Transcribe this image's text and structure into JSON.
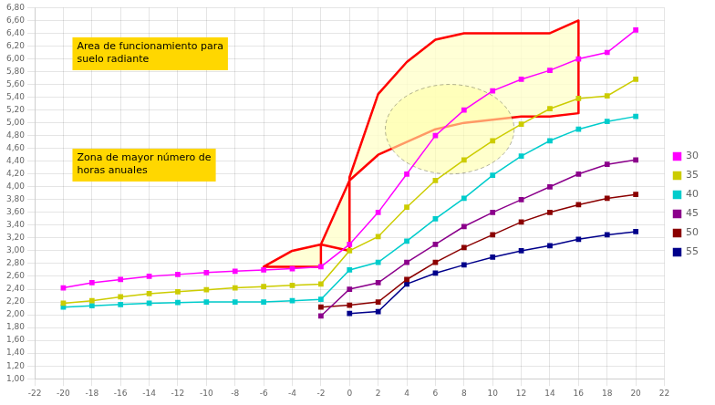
{
  "chart_data": {
    "type": "line",
    "x": [
      -20,
      -18,
      -16,
      -14,
      -12,
      -10,
      -8,
      -6,
      -4,
      -2,
      0,
      2,
      4,
      6,
      8,
      10,
      12,
      14,
      16,
      18,
      20
    ],
    "series": [
      {
        "name": "30",
        "color": "#FF00FF",
        "marker": "square",
        "values": [
          2.42,
          2.5,
          2.55,
          2.6,
          2.63,
          2.66,
          2.68,
          2.7,
          2.72,
          2.75,
          3.1,
          3.6,
          4.2,
          4.8,
          5.2,
          5.5,
          5.68,
          5.82,
          6.0,
          6.1,
          6.45
        ]
      },
      {
        "name": "35",
        "color": "#CCCC00",
        "marker": "square",
        "values": [
          2.18,
          2.22,
          2.28,
          2.33,
          2.36,
          2.39,
          2.42,
          2.44,
          2.46,
          2.48,
          3.0,
          3.22,
          3.68,
          4.1,
          4.42,
          4.72,
          4.98,
          5.22,
          5.38,
          5.42,
          5.68
        ]
      },
      {
        "name": "40",
        "color": "#00CCCC",
        "marker": "square",
        "values": [
          2.12,
          2.14,
          2.16,
          2.18,
          2.19,
          2.2,
          2.2,
          2.2,
          2.22,
          2.24,
          2.7,
          2.82,
          3.15,
          3.5,
          3.82,
          4.18,
          4.48,
          4.72,
          4.9,
          5.02,
          5.1
        ]
      },
      {
        "name": "45",
        "color": "#8B008B",
        "marker": "square",
        "values": [
          null,
          null,
          null,
          null,
          null,
          null,
          null,
          null,
          null,
          1.98,
          2.4,
          2.5,
          2.82,
          3.1,
          3.38,
          3.6,
          3.8,
          4.0,
          4.2,
          4.35,
          4.42
        ]
      },
      {
        "name": "50",
        "color": "#8B0000",
        "marker": "square",
        "values": [
          null,
          null,
          null,
          null,
          null,
          null,
          null,
          null,
          null,
          2.12,
          2.15,
          2.2,
          2.55,
          2.82,
          3.05,
          3.25,
          3.45,
          3.6,
          3.72,
          3.82,
          3.88
        ]
      },
      {
        "name": "55",
        "color": "#00008B",
        "marker": "square",
        "values": [
          null,
          null,
          null,
          null,
          null,
          null,
          null,
          null,
          null,
          null,
          2.02,
          2.05,
          2.48,
          2.65,
          2.78,
          2.9,
          3.0,
          3.08,
          3.18,
          3.25,
          3.3
        ]
      }
    ],
    "region": {
      "x": [
        -2,
        -2,
        0,
        0,
        2,
        4,
        6,
        8,
        10,
        12,
        14,
        16,
        16,
        14,
        12,
        10,
        8,
        6,
        4,
        2,
        0,
        -2,
        -4,
        -6,
        -2
      ],
      "y": [
        2.75,
        3.1,
        3.0,
        4.15,
        5.45,
        5.95,
        6.3,
        6.4,
        6.4,
        6.4,
        6.4,
        6.6,
        5.15,
        5.1,
        5.1,
        5.05,
        5.0,
        4.9,
        4.7,
        4.5,
        4.1,
        3.1,
        3.0,
        2.75,
        2.75
      ],
      "color": "#FF0000",
      "fill_color": "#FFFFCC"
    },
    "ellipse": {
      "cx": 7.0,
      "cy": 4.9,
      "rx": 4.5,
      "ry": 0.7,
      "color": "#FFFFAA"
    },
    "annotations": [
      {
        "text": "Area de funcionamiento para\nsuelo radiante",
        "color": "#FFD700"
      },
      {
        "text": "Zona de mayor número de\nhoras anuales",
        "color": "#FFD700"
      }
    ],
    "xlim": [
      -22,
      22
    ],
    "xticks": [
      -22,
      -20,
      -18,
      -16,
      -14,
      -12,
      -10,
      -8,
      -6,
      -4,
      -2,
      0,
      2,
      4,
      6,
      8,
      10,
      12,
      14,
      16,
      18,
      20,
      22
    ],
    "ylim": [
      1.0,
      6.8
    ],
    "yticks": [
      {
        "value": 1.0,
        "label": "1,00"
      },
      {
        "value": 1.2,
        "label": "1,20"
      },
      {
        "value": 1.4,
        "label": "1,40"
      },
      {
        "value": 1.6,
        "label": "1,60"
      },
      {
        "value": 1.8,
        "label": "1,80"
      },
      {
        "value": 2.0,
        "label": "2,00"
      },
      {
        "value": 2.2,
        "label": "2,20"
      },
      {
        "value": 2.4,
        "label": "2,40"
      },
      {
        "value": 2.6,
        "label": "2,60"
      },
      {
        "value": 2.8,
        "label": "2,80"
      },
      {
        "value": 3.0,
        "label": "3,00"
      },
      {
        "value": 3.2,
        "label": "3,20"
      },
      {
        "value": 3.4,
        "label": "3,40"
      },
      {
        "value": 3.6,
        "label": "3,60"
      },
      {
        "value": 3.8,
        "label": "3,80"
      },
      {
        "value": 4.0,
        "label": "4,00"
      },
      {
        "value": 4.2,
        "label": "4,20"
      },
      {
        "value": 4.4,
        "label": "4,40"
      },
      {
        "value": 4.6,
        "label": "4,60"
      },
      {
        "value": 4.8,
        "label": "4,80"
      },
      {
        "value": 5.0,
        "label": "5,00"
      },
      {
        "value": 5.2,
        "label": "5,20"
      },
      {
        "value": 5.4,
        "label": "5,40"
      },
      {
        "value": 5.6,
        "label": "5,60"
      },
      {
        "value": 5.8,
        "label": "5,80"
      },
      {
        "value": 6.0,
        "label": "6,00"
      },
      {
        "value": 6.2,
        "label": "6,20"
      },
      {
        "value": 6.4,
        "label": "6,40"
      },
      {
        "value": 6.6,
        "label": "6,60"
      },
      {
        "value": 6.8,
        "label": "6,80"
      }
    ],
    "grid": true,
    "legend": "right"
  }
}
